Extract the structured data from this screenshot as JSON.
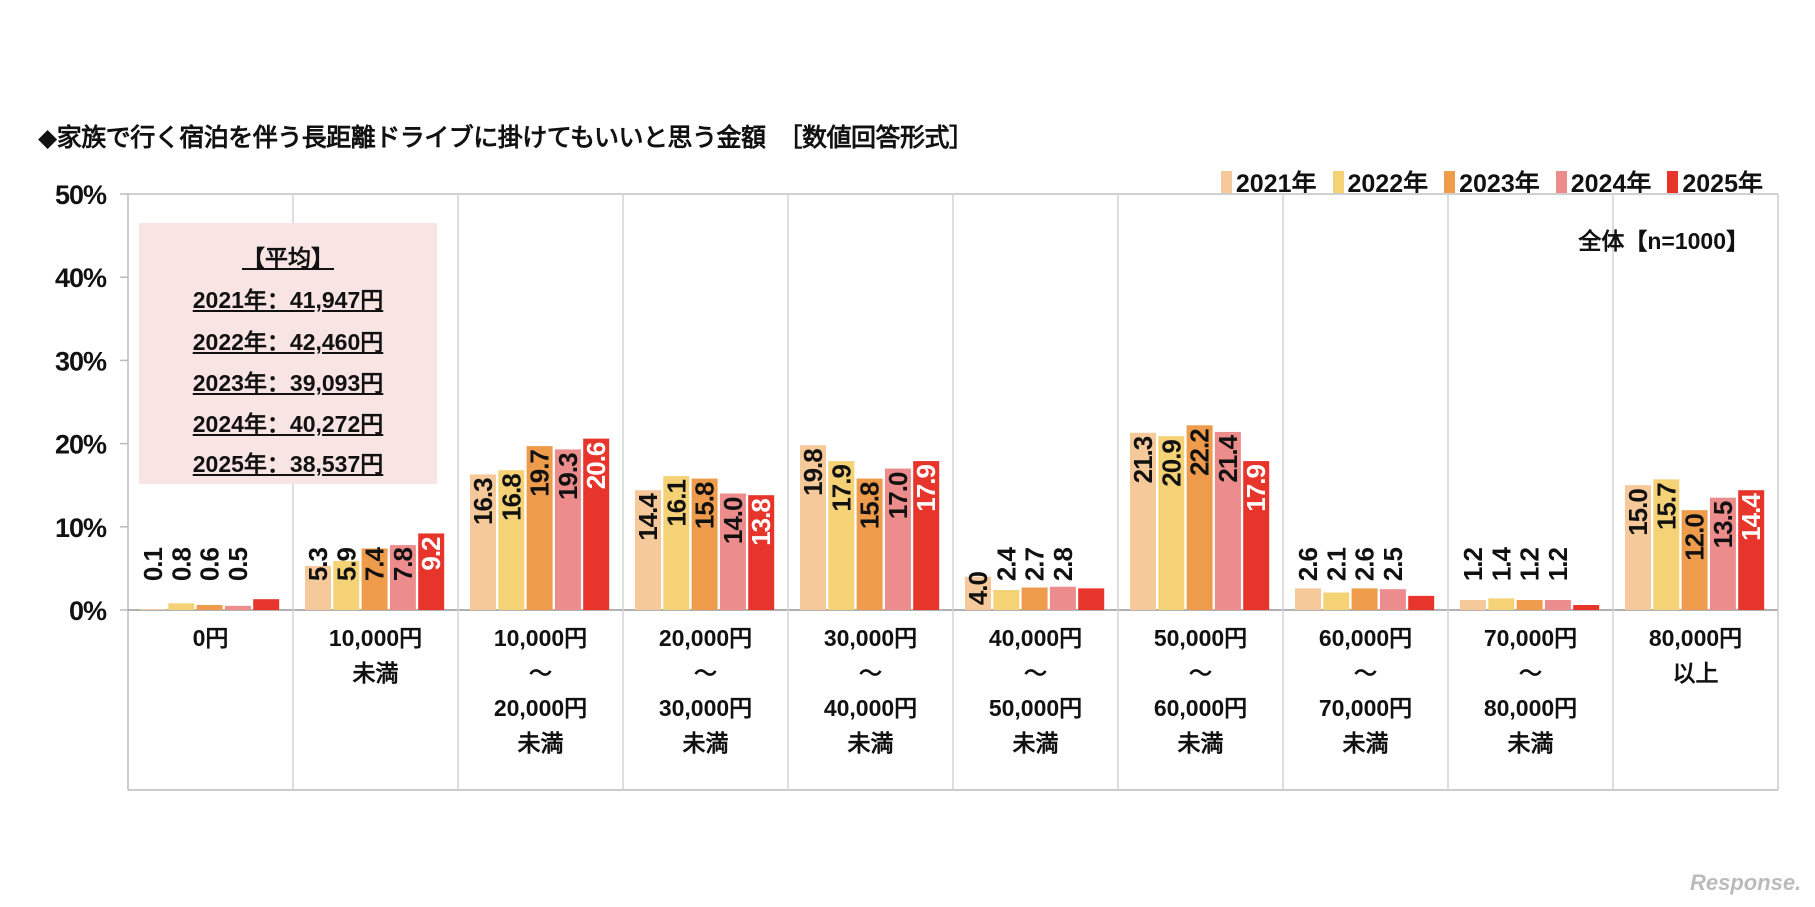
{
  "title": "◆家族で行く宿泊を伴う長距離ドライブに掛けてもいいと思う金額　［数値回答形式］",
  "sample_note": "全体【n=1000】",
  "average_box": {
    "heading": "【平均】",
    "lines": [
      "2021年：41,947円",
      "2022年：42,460円",
      "2023年：39,093円",
      "2024年：40,272円",
      "2025年：38,537円"
    ]
  },
  "watermark": "Response.",
  "chart_data": {
    "type": "bar",
    "ylim": [
      0,
      50
    ],
    "yticks": [
      "0%",
      "10%",
      "20%",
      "30%",
      "40%",
      "50%"
    ],
    "grid": false,
    "legend_position": "top-right",
    "categories": [
      [
        "0円"
      ],
      [
        "10,000円",
        "未満"
      ],
      [
        "10,000円",
        "～",
        "20,000円",
        "未満"
      ],
      [
        "20,000円",
        "～",
        "30,000円",
        "未満"
      ],
      [
        "30,000円",
        "～",
        "40,000円",
        "未満"
      ],
      [
        "40,000円",
        "～",
        "50,000円",
        "未満"
      ],
      [
        "50,000円",
        "～",
        "60,000円",
        "未満"
      ],
      [
        "60,000円",
        "～",
        "70,000円",
        "未満"
      ],
      [
        "70,000円",
        "～",
        "80,000円",
        "未満"
      ],
      [
        "80,000円",
        "以上"
      ]
    ],
    "series": [
      {
        "name": "2021年",
        "color": "#f5c99a",
        "values": [
          0.1,
          5.3,
          16.3,
          14.4,
          19.8,
          4.0,
          21.3,
          2.6,
          1.2,
          15.0
        ]
      },
      {
        "name": "2022年",
        "color": "#f5d275",
        "values": [
          0.8,
          5.9,
          16.8,
          16.1,
          17.9,
          2.4,
          20.9,
          2.1,
          1.4,
          15.7
        ]
      },
      {
        "name": "2023年",
        "color": "#ee9c4c",
        "values": [
          0.6,
          7.4,
          19.7,
          15.8,
          15.8,
          2.7,
          22.2,
          2.6,
          1.2,
          12.0
        ]
      },
      {
        "name": "2024年",
        "color": "#ec8c8c",
        "values": [
          0.5,
          7.8,
          19.3,
          14.0,
          17.0,
          2.8,
          21.4,
          2.5,
          1.2,
          13.5
        ]
      },
      {
        "name": "2025年",
        "color": "#e8352b",
        "values": [
          1.3,
          9.2,
          20.6,
          13.8,
          17.9,
          2.6,
          17.9,
          1.7,
          0.6,
          14.4
        ]
      }
    ]
  }
}
